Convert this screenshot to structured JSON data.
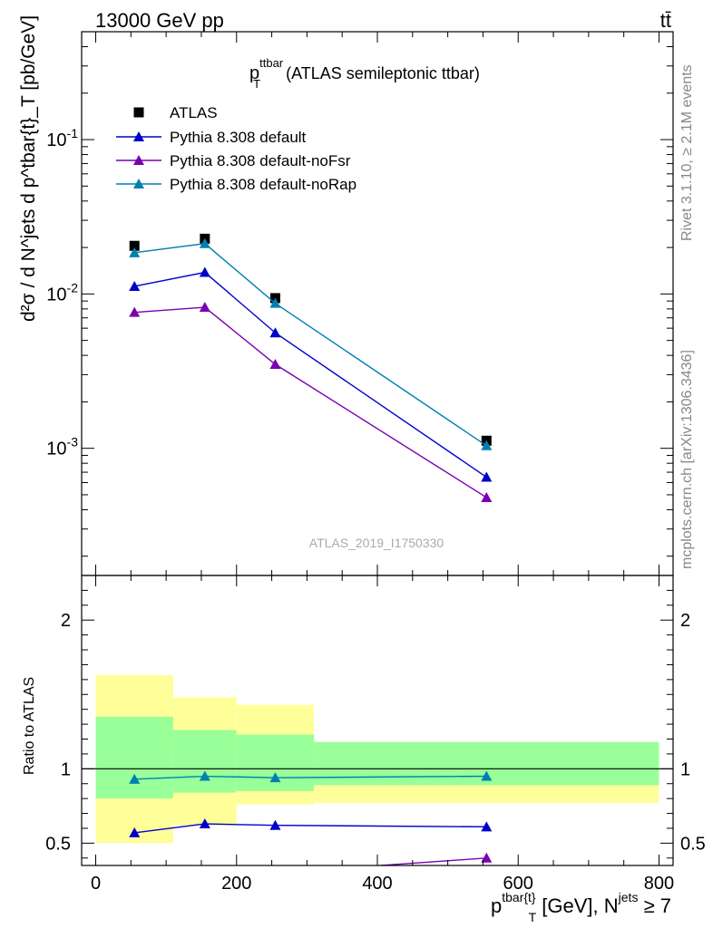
{
  "header": {
    "left": "13000 GeV pp",
    "right": "tt̄"
  },
  "side": {
    "rivet": "Rivet 3.1.10, ≥ 2.1M events",
    "mcplots": "mcplots.cern.ch [arXiv:1306.3436]"
  },
  "main_title": {
    "p": "p",
    "sup": "ttbar",
    "sub": "T",
    "rest": " (ATLAS semileptonic ttbar)"
  },
  "ylabel_main": "d²σ / d N^jets d p^tbar{t}_T [pb/GeV]",
  "ylabel_ratio": "Ratio to ATLAS",
  "watermark": "ATLAS_2019_I1750330",
  "xlabel": {
    "base": "p",
    "sup1": "tbar{t}",
    "sub": "T",
    "mid": " [GeV], N",
    "sup2": "jets",
    "tail": " ≥ 7"
  },
  "colors": {
    "atlas": "#000000",
    "default": "#0000cc",
    "noFsr": "#7a00b0",
    "noRap": "#0080b0",
    "band_outer": "#ffff99",
    "band_inner": "#99ff99"
  },
  "chart_data": {
    "type": "scatter",
    "x": [
      55,
      155,
      255,
      555
    ],
    "bins": [
      [
        0,
        110
      ],
      [
        110,
        200
      ],
      [
        200,
        310
      ],
      [
        310,
        800
      ]
    ],
    "main": {
      "yscale": "log",
      "ylim": [
        0.00015,
        0.5
      ],
      "tick_labels": [
        "10^-3",
        "10^-2",
        "10^-1"
      ],
      "series": [
        {
          "name": "ATLAS",
          "marker": "square",
          "values": [
            0.0205,
            0.0228,
            0.0094,
            0.00112
          ]
        },
        {
          "name": "Pythia 8.308 default",
          "marker": "triangle",
          "values": [
            0.0112,
            0.0138,
            0.0056,
            0.00065
          ]
        },
        {
          "name": "Pythia 8.308 default-noFsr",
          "marker": "triangle",
          "values": [
            0.0076,
            0.0082,
            0.0035,
            0.00048
          ]
        },
        {
          "name": "Pythia 8.308 default-noRap",
          "marker": "triangle",
          "values": [
            0.0185,
            0.0212,
            0.0087,
            0.00104
          ]
        }
      ]
    },
    "ratio": {
      "ylim": [
        0.35,
        2.3
      ],
      "yticks": [
        0.5,
        1,
        2
      ],
      "tick_labels": [
        "0.5",
        "1",
        "2"
      ],
      "band_outer": [
        [
          0.5,
          1.63
        ],
        [
          0.62,
          1.48
        ],
        [
          0.76,
          1.43
        ],
        [
          0.77,
          1.18
        ]
      ],
      "band_inner": [
        [
          0.8,
          1.35
        ],
        [
          0.84,
          1.26
        ],
        [
          0.85,
          1.23
        ],
        [
          0.89,
          1.18
        ]
      ],
      "series": [
        {
          "name": "Pythia 8.308 default",
          "values": [
            0.57,
            0.63,
            0.62,
            0.61
          ]
        },
        {
          "name": "Pythia 8.308 default-noFsr",
          "values": [
            0.3,
            0.3,
            0.3,
            0.4
          ]
        },
        {
          "name": "Pythia 8.308 default-noRap",
          "values": [
            0.93,
            0.95,
            0.94,
            0.95
          ]
        }
      ]
    },
    "xlim": [
      -20,
      820
    ],
    "xticks": [
      0,
      200,
      400,
      600,
      800
    ],
    "xtick_labels": [
      "0",
      "200",
      "400",
      "600",
      "800"
    ]
  }
}
